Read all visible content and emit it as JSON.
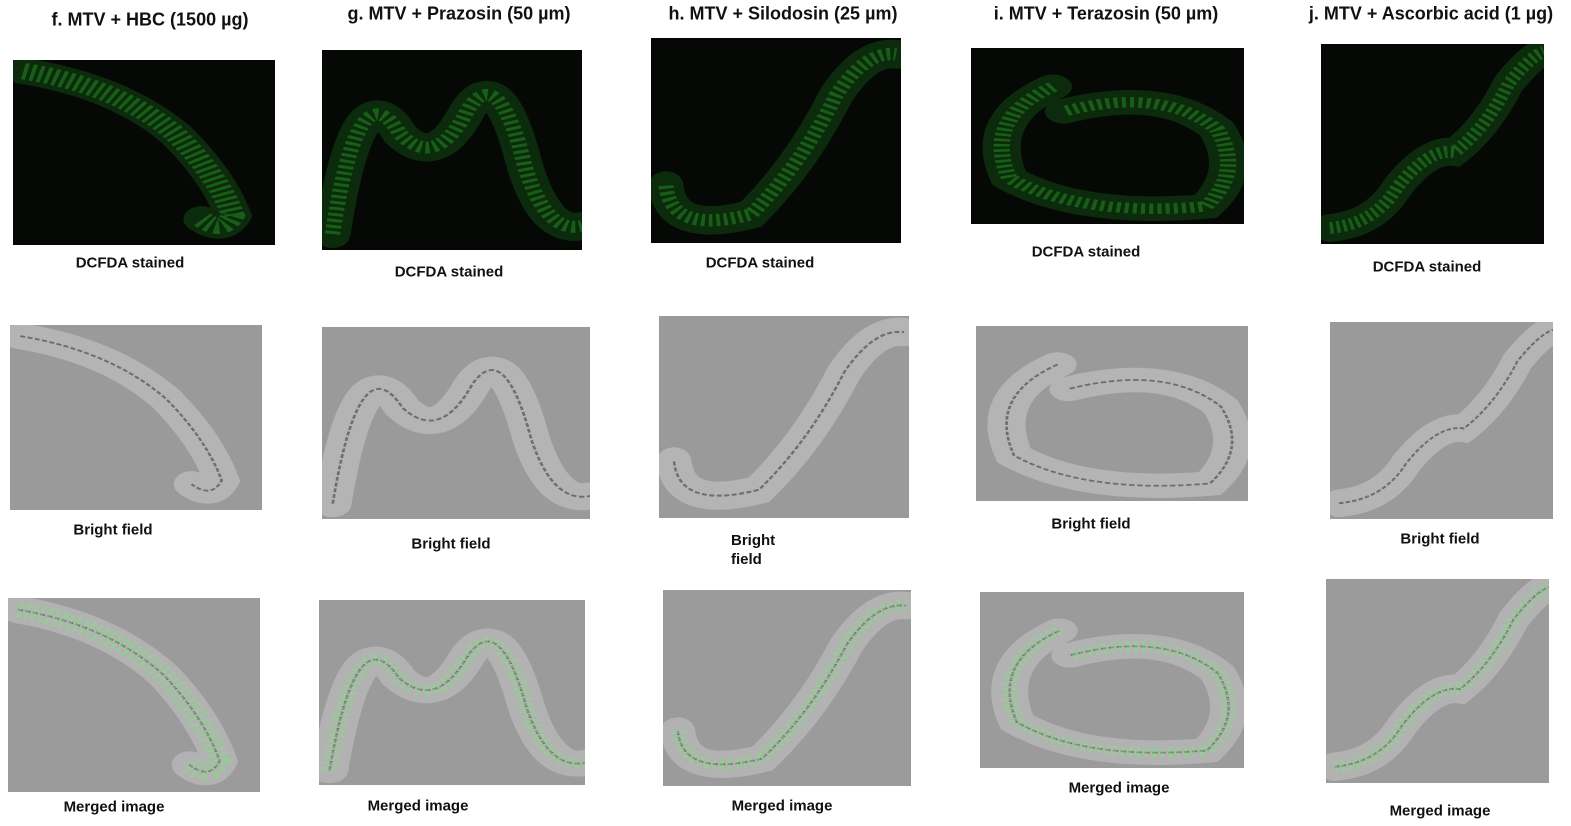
{
  "panels": [
    {
      "title": "f. MTV + HBC (1500 µg)",
      "captions": [
        "DCFDA stained",
        "Bright field",
        "Merged image"
      ]
    },
    {
      "title": "g. MTV + Prazosin (50 µm)",
      "captions": [
        "DCFDA stained",
        "Bright field",
        "Merged image"
      ]
    },
    {
      "title": "h. MTV + Silodosin (25 µm)",
      "captions": [
        "DCFDA stained",
        "Bright field",
        "Merged image"
      ]
    },
    {
      "title": "i. MTV + Terazosin (50 µm)",
      "captions": [
        "DCFDA stained",
        "Bright field",
        "Merged image"
      ]
    },
    {
      "title": "j. MTV + Ascorbic acid (1 µg)",
      "captions": [
        "DCFDA stained",
        "Bright field",
        "Merged image"
      ]
    }
  ]
}
